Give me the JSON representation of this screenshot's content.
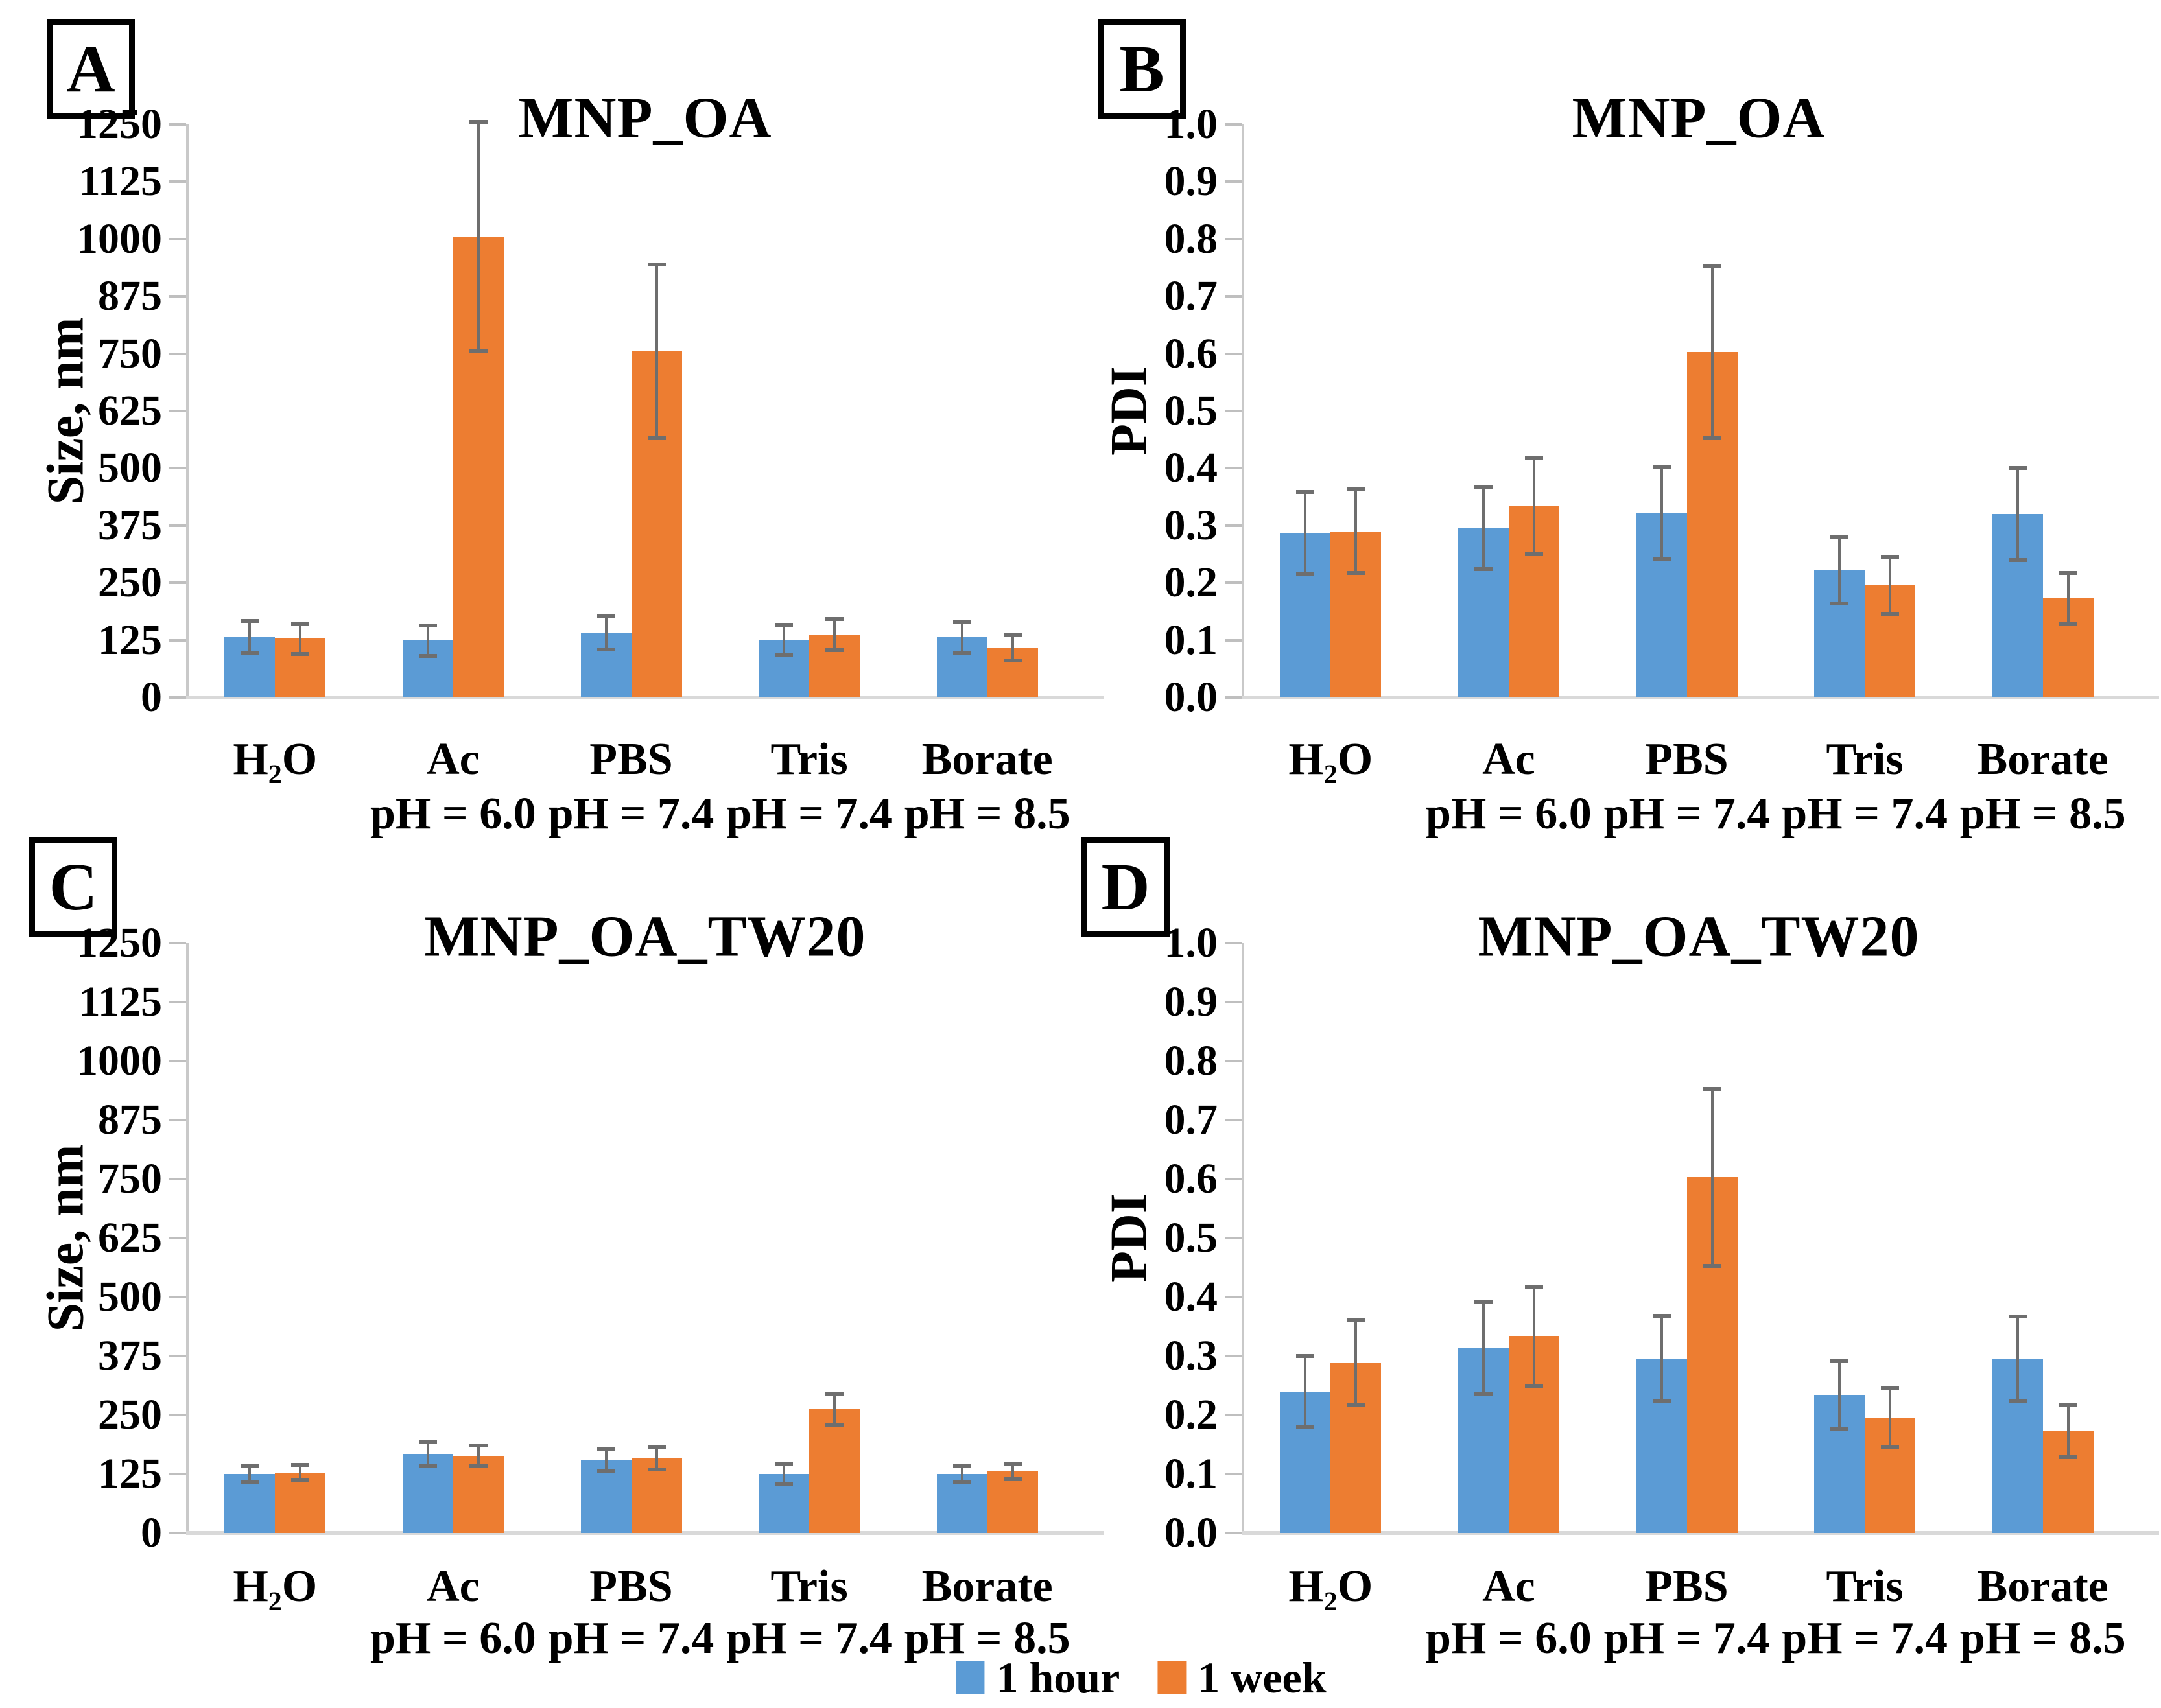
{
  "legend": {
    "items": [
      {
        "label": "1 hour",
        "color": "#5B9BD5"
      },
      {
        "label": "1 week",
        "color": "#ED7D31"
      }
    ]
  },
  "colors": {
    "series_1hour": "#5B9BD5",
    "series_1week": "#ED7D31",
    "error_bar": "#6e6e6e",
    "axis_line": "#c9c9c9",
    "baseline": "#d9d9d9",
    "tick": "#bfbfbf"
  },
  "chart_data": [
    {
      "panel": "A",
      "type": "bar",
      "title": "MNP_OA",
      "ylabel": "Size, nm",
      "ylim": [
        0,
        1250
      ],
      "ytick_step": 125,
      "ytick_decimals": 0,
      "grid": false,
      "legend_position": "bottom",
      "categories": [
        [
          "H₂O",
          ""
        ],
        [
          "Ac",
          "pH = 6.0"
        ],
        [
          "PBS",
          "pH = 7.4"
        ],
        [
          "Tris",
          "pH = 7.4"
        ],
        [
          "Borate",
          "pH = 8.5"
        ]
      ],
      "series": [
        {
          "name": "1 hour",
          "values": [
            132,
            124,
            141,
            126,
            131
          ],
          "errors": [
            35,
            33,
            37,
            32,
            34
          ]
        },
        {
          "name": "1 week",
          "values": [
            128,
            1005,
            755,
            137,
            109
          ],
          "errors": [
            33,
            250,
            190,
            34,
            28
          ]
        }
      ]
    },
    {
      "panel": "B",
      "type": "bar",
      "title": "MNP_OA",
      "ylabel": "PDI",
      "ylim": [
        0,
        1.0
      ],
      "ytick_step": 0.1,
      "ytick_decimals": 1,
      "grid": false,
      "legend_position": "bottom",
      "categories": [
        [
          "H₂O",
          ""
        ],
        [
          "Ac",
          "pH = 6.0"
        ],
        [
          "PBS",
          "pH = 7.4"
        ],
        [
          "Tris",
          "pH = 7.4"
        ],
        [
          "Borate",
          "pH = 8.5"
        ]
      ],
      "series": [
        {
          "name": "1 hour",
          "values": [
            0.287,
            0.296,
            0.322,
            0.222,
            0.32
          ],
          "errors": [
            0.072,
            0.072,
            0.08,
            0.058,
            0.08
          ]
        },
        {
          "name": "1 week",
          "values": [
            0.29,
            0.335,
            0.603,
            0.196,
            0.173
          ],
          "errors": [
            0.073,
            0.084,
            0.15,
            0.05,
            0.044
          ]
        }
      ]
    },
    {
      "panel": "C",
      "type": "bar",
      "title": "MNP_OA_TW20",
      "ylabel": "Size, nm",
      "ylim": [
        0,
        1250
      ],
      "ytick_step": 125,
      "ytick_decimals": 0,
      "grid": false,
      "legend_position": "bottom",
      "categories": [
        [
          "H₂O",
          ""
        ],
        [
          "Ac",
          "pH = 6.0"
        ],
        [
          "PBS",
          "pH = 7.4"
        ],
        [
          "Tris",
          "pH = 7.4"
        ],
        [
          "Borate",
          "pH = 8.5"
        ]
      ],
      "series": [
        {
          "name": "1 hour",
          "values": [
            125,
            168,
            155,
            125,
            125
          ],
          "errors": [
            17,
            25,
            24,
            20,
            16
          ]
        },
        {
          "name": "1 week",
          "values": [
            128,
            164,
            158,
            262,
            130
          ],
          "errors": [
            16,
            22,
            24,
            33,
            16
          ]
        }
      ]
    },
    {
      "panel": "D",
      "type": "bar",
      "title": "MNP_OA_TW20",
      "ylabel": "PDI",
      "ylim": [
        0,
        1.0
      ],
      "ytick_step": 0.1,
      "ytick_decimals": 1,
      "grid": false,
      "legend_position": "bottom",
      "categories": [
        [
          "H₂O",
          ""
        ],
        [
          "Ac",
          "pH = 6.0"
        ],
        [
          "PBS",
          "pH = 7.4"
        ],
        [
          "Tris",
          "pH = 7.4"
        ],
        [
          "Borate",
          "pH = 8.5"
        ]
      ],
      "series": [
        {
          "name": "1 hour",
          "values": [
            0.24,
            0.313,
            0.296,
            0.234,
            0.295
          ],
          "errors": [
            0.06,
            0.078,
            0.072,
            0.058,
            0.072
          ]
        },
        {
          "name": "1 week",
          "values": [
            0.289,
            0.334,
            0.603,
            0.196,
            0.173
          ],
          "errors": [
            0.073,
            0.084,
            0.15,
            0.05,
            0.044
          ]
        }
      ]
    }
  ]
}
